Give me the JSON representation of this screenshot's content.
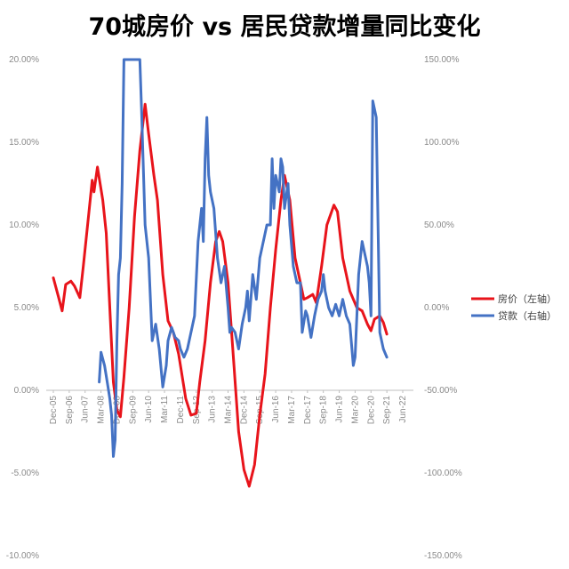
{
  "chart_data": {
    "type": "line",
    "title": "70城房价 vs 居民贷款增量同比变化",
    "x_labels": [
      "Dec-05",
      "Sep-06",
      "Jun-07",
      "Mar-08",
      "Dec-08",
      "Sep-09",
      "Jun-10",
      "Mar-11",
      "Dec-11",
      "Sep-12",
      "Jun-13",
      "Mar-14",
      "Dec-14",
      "Sep-15",
      "Jun-16",
      "Mar-17",
      "Dec-17",
      "Sep-18",
      "Jun-19",
      "Mar-20",
      "Dec-20",
      "Sep-21",
      "Jun-22"
    ],
    "y_left": {
      "ticks": [
        "20.00%",
        "15.00%",
        "10.00%",
        "5.00%",
        "0.00%",
        "-5.00%",
        "-10.00%"
      ],
      "range": [
        -10,
        20
      ]
    },
    "y_right": {
      "ticks": [
        "150.00%",
        "100.00%",
        "50.00%",
        "0.00%",
        "-50.00%",
        "-100.00%",
        "-150.00%"
      ],
      "range": [
        -150,
        150
      ]
    },
    "legend_position": "right",
    "series": [
      {
        "name": "房价（左轴）",
        "axis": "left",
        "color": "#e8141b",
        "points": [
          [
            "2005-12",
            6.8
          ],
          [
            "2006-03",
            5.6
          ],
          [
            "2006-05",
            4.8
          ],
          [
            "2006-07",
            6.4
          ],
          [
            "2006-10",
            6.6
          ],
          [
            "2006-12",
            6.3
          ],
          [
            "2007-03",
            5.6
          ],
          [
            "2007-05",
            7.5
          ],
          [
            "2007-08",
            10.6
          ],
          [
            "2007-10",
            12.7
          ],
          [
            "2007-11",
            12.0
          ],
          [
            "2008-01",
            13.5
          ],
          [
            "2008-04",
            11.5
          ],
          [
            "2008-06",
            9.5
          ],
          [
            "2008-08",
            5.0
          ],
          [
            "2008-10",
            0.5
          ],
          [
            "2008-12",
            -1.2
          ],
          [
            "2009-02",
            -1.6
          ],
          [
            "2009-04",
            0.8
          ],
          [
            "2009-07",
            5.0
          ],
          [
            "2009-10",
            10.5
          ],
          [
            "2010-01",
            14.5
          ],
          [
            "2010-04",
            17.3
          ],
          [
            "2010-06",
            15.5
          ],
          [
            "2010-09",
            13.0
          ],
          [
            "2010-11",
            11.5
          ],
          [
            "2011-02",
            7.0
          ],
          [
            "2011-05",
            4.2
          ],
          [
            "2011-08",
            3.5
          ],
          [
            "2011-11",
            2.2
          ],
          [
            "2012-03",
            -0.5
          ],
          [
            "2012-06",
            -1.5
          ],
          [
            "2012-09",
            -1.4
          ],
          [
            "2012-11",
            0.5
          ],
          [
            "2013-02",
            3.0
          ],
          [
            "2013-05",
            6.5
          ],
          [
            "2013-08",
            9.0
          ],
          [
            "2013-10",
            9.6
          ],
          [
            "2013-12",
            9.0
          ],
          [
            "2014-03",
            6.5
          ],
          [
            "2014-06",
            2.0
          ],
          [
            "2014-09",
            -2.5
          ],
          [
            "2014-12",
            -4.8
          ],
          [
            "2015-03",
            -5.8
          ],
          [
            "2015-06",
            -4.5
          ],
          [
            "2015-09",
            -1.5
          ],
          [
            "2015-12",
            1.0
          ],
          [
            "2016-03",
            5.0
          ],
          [
            "2016-06",
            8.5
          ],
          [
            "2016-09",
            11.5
          ],
          [
            "2016-11",
            13.0
          ],
          [
            "2017-02",
            11.5
          ],
          [
            "2017-05",
            8.0
          ],
          [
            "2017-08",
            6.5
          ],
          [
            "2017-10",
            5.5
          ],
          [
            "2017-12",
            5.6
          ],
          [
            "2018-03",
            5.8
          ],
          [
            "2018-05",
            5.3
          ],
          [
            "2018-08",
            7.5
          ],
          [
            "2018-11",
            10.0
          ],
          [
            "2019-03",
            11.2
          ],
          [
            "2019-05",
            10.8
          ],
          [
            "2019-08",
            8.0
          ],
          [
            "2019-12",
            6.0
          ],
          [
            "2020-04",
            5.0
          ],
          [
            "2020-07",
            4.8
          ],
          [
            "2020-10",
            4.0
          ],
          [
            "2020-12",
            3.6
          ],
          [
            "2021-02",
            4.3
          ],
          [
            "2021-05",
            4.5
          ],
          [
            "2021-07",
            4.1
          ],
          [
            "2021-09",
            3.4
          ]
        ]
      },
      {
        "name": "贷款（右轴）",
        "axis": "right",
        "color": "#4472c4",
        "points": [
          [
            "2008-02",
            -45
          ],
          [
            "2008-03",
            -27
          ],
          [
            "2008-05",
            -35
          ],
          [
            "2008-07",
            -48
          ],
          [
            "2008-08",
            -55
          ],
          [
            "2008-09",
            -65
          ],
          [
            "2008-10",
            -90
          ],
          [
            "2008-11",
            -80
          ],
          [
            "2008-12",
            -20
          ],
          [
            "2009-01",
            20
          ],
          [
            "2009-02",
            30
          ],
          [
            "2009-03",
            75
          ],
          [
            "2009-04",
            150
          ],
          [
            "2009-05",
            150
          ],
          [
            "2009-06",
            150
          ],
          [
            "2009-09",
            150
          ],
          [
            "2009-10",
            150
          ],
          [
            "2009-11",
            150
          ],
          [
            "2009-12",
            150
          ],
          [
            "2010-01",
            150
          ],
          [
            "2010-02",
            120
          ],
          [
            "2010-04",
            50
          ],
          [
            "2010-06",
            30
          ],
          [
            "2010-08",
            -20
          ],
          [
            "2010-10",
            -10
          ],
          [
            "2010-12",
            -25
          ],
          [
            "2011-02",
            -48
          ],
          [
            "2011-04",
            -35
          ],
          [
            "2011-05",
            -20
          ],
          [
            "2011-07",
            -12
          ],
          [
            "2011-09",
            -18
          ],
          [
            "2011-11",
            -20
          ],
          [
            "2011-12",
            -25
          ],
          [
            "2012-02",
            -30
          ],
          [
            "2012-04",
            -25
          ],
          [
            "2012-06",
            -15
          ],
          [
            "2012-08",
            -5
          ],
          [
            "2012-10",
            40
          ],
          [
            "2012-12",
            60
          ],
          [
            "2013-01",
            40
          ],
          [
            "2013-02",
            90
          ],
          [
            "2013-03",
            115
          ],
          [
            "2013-04",
            80
          ],
          [
            "2013-05",
            70
          ],
          [
            "2013-07",
            60
          ],
          [
            "2013-09",
            30
          ],
          [
            "2013-11",
            15
          ],
          [
            "2014-01",
            25
          ],
          [
            "2014-03",
            0
          ],
          [
            "2014-04",
            -15
          ],
          [
            "2014-05",
            -12
          ],
          [
            "2014-07",
            -15
          ],
          [
            "2014-09",
            -25
          ],
          [
            "2014-11",
            -10
          ],
          [
            "2015-01",
            0
          ],
          [
            "2015-02",
            10
          ],
          [
            "2015-03",
            -8
          ],
          [
            "2015-05",
            20
          ],
          [
            "2015-07",
            5
          ],
          [
            "2015-09",
            30
          ],
          [
            "2015-10",
            35
          ],
          [
            "2015-12",
            45
          ],
          [
            "2016-01",
            50
          ],
          [
            "2016-03",
            50
          ],
          [
            "2016-04",
            90
          ],
          [
            "2016-05",
            60
          ],
          [
            "2016-06",
            80
          ],
          [
            "2016-08",
            70
          ],
          [
            "2016-09",
            90
          ],
          [
            "2016-10",
            85
          ],
          [
            "2016-11",
            60
          ],
          [
            "2017-01",
            75
          ],
          [
            "2017-02",
            50
          ],
          [
            "2017-04",
            25
          ],
          [
            "2017-06",
            15
          ],
          [
            "2017-08",
            15
          ],
          [
            "2017-09",
            -15
          ],
          [
            "2017-11",
            -2
          ],
          [
            "2017-12",
            -5
          ],
          [
            "2018-02",
            -18
          ],
          [
            "2018-04",
            -5
          ],
          [
            "2018-06",
            5
          ],
          [
            "2018-08",
            10
          ],
          [
            "2018-09",
            20
          ],
          [
            "2018-10",
            10
          ],
          [
            "2018-12",
            0
          ],
          [
            "2019-02",
            -5
          ],
          [
            "2019-04",
            2
          ],
          [
            "2019-06",
            -5
          ],
          [
            "2019-08",
            5
          ],
          [
            "2019-10",
            -5
          ],
          [
            "2019-12",
            -10
          ],
          [
            "2020-02",
            -35
          ],
          [
            "2020-03",
            -30
          ],
          [
            "2020-05",
            20
          ],
          [
            "2020-07",
            40
          ],
          [
            "2020-09",
            30
          ],
          [
            "2020-10",
            25
          ],
          [
            "2020-11",
            15
          ],
          [
            "2020-12",
            -5
          ],
          [
            "2021-01",
            125
          ],
          [
            "2021-03",
            115
          ],
          [
            "2021-05",
            -15
          ],
          [
            "2021-07",
            -25
          ],
          [
            "2021-09",
            -30
          ]
        ]
      }
    ]
  }
}
